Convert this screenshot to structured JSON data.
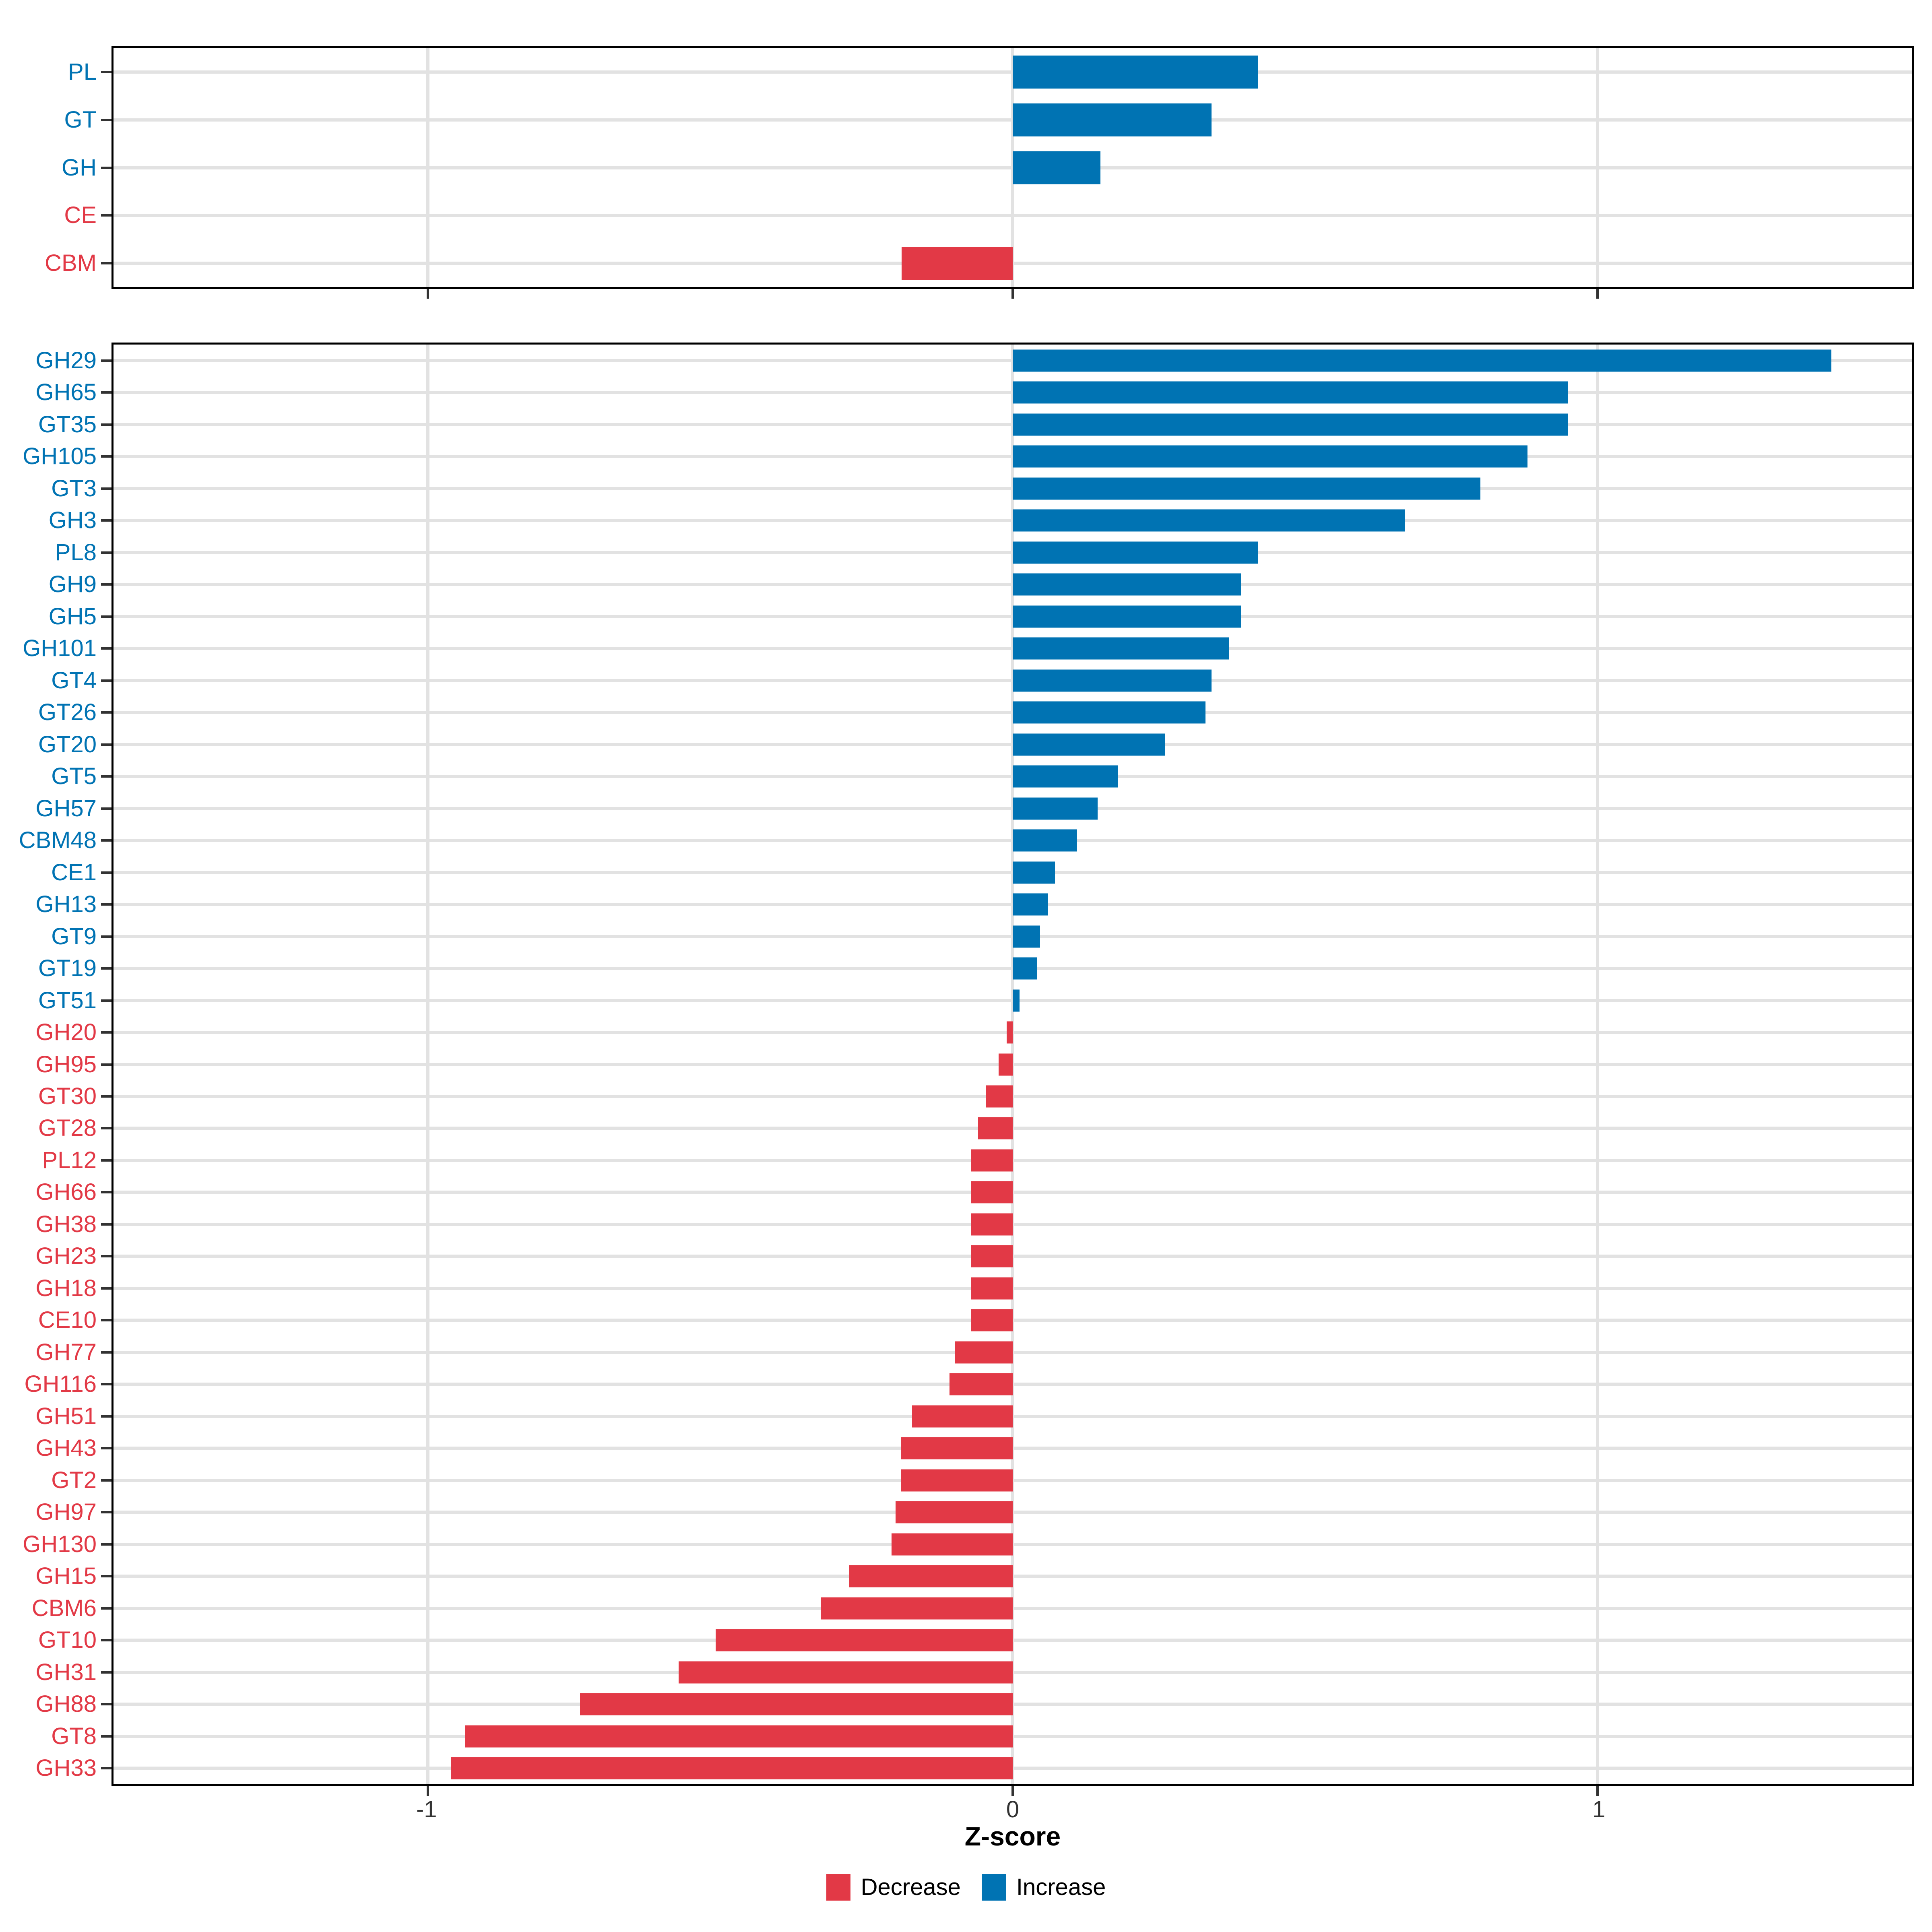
{
  "colors": {
    "increase": "#0073B3",
    "decrease": "#E23946",
    "gridline": "#e2e2e2",
    "axis": "#000000"
  },
  "chart_data": {
    "type": "bar",
    "orientation": "horizontal",
    "xlabel": "Z-score",
    "xlim": [
      -1.5375,
      1.5375
    ],
    "x_tick_values": [
      -1,
      0,
      1
    ],
    "x_ticks": [
      "-1",
      "0",
      "1"
    ],
    "grid": "major-only",
    "legend_position": "bottom",
    "legend": [
      {
        "label": "Decrease",
        "direction": "decrease",
        "color": "#E23946"
      },
      {
        "label": "Increase",
        "direction": "increase",
        "color": "#0073B3"
      }
    ],
    "panels": [
      {
        "name": "cazyme-classes",
        "categories": [
          "PL",
          "GT",
          "GH",
          "CE",
          "CBM"
        ],
        "values": [
          0.42,
          0.34,
          0.15,
          0.0,
          -0.19
        ],
        "directions": [
          "increase",
          "increase",
          "increase",
          "decrease",
          "decrease"
        ]
      },
      {
        "name": "cazyme-families",
        "categories": [
          "GH29",
          "GH65",
          "GT35",
          "GH105",
          "GT3",
          "GH3",
          "PL8",
          "GH9",
          "GH5",
          "GH101",
          "GT4",
          "GT26",
          "GT20",
          "GT5",
          "GH57",
          "CBM48",
          "CE1",
          "GH13",
          "GT9",
          "GT19",
          "GT51",
          "GH20",
          "GH95",
          "GT30",
          "GT28",
          "PL12",
          "GH66",
          "GH38",
          "GH23",
          "GH18",
          "CE10",
          "GH77",
          "GH116",
          "GH51",
          "GH43",
          "GT2",
          "GH97",
          "GH130",
          "GH15",
          "CBM6",
          "GT10",
          "GH31",
          "GH88",
          "GT8",
          "GH33"
        ],
        "values": [
          1.4,
          0.95,
          0.95,
          0.88,
          0.8,
          0.67,
          0.42,
          0.39,
          0.39,
          0.37,
          0.34,
          0.33,
          0.26,
          0.18,
          0.145,
          0.11,
          0.072,
          0.06,
          0.047,
          0.041,
          0.012,
          -0.01,
          -0.024,
          -0.046,
          -0.059,
          -0.071,
          -0.071,
          -0.071,
          -0.071,
          -0.071,
          -0.071,
          -0.099,
          -0.108,
          -0.172,
          -0.191,
          -0.191,
          -0.2,
          -0.207,
          -0.28,
          -0.328,
          -0.508,
          -0.571,
          -0.74,
          -0.936,
          -0.961
        ],
        "directions": [
          "increase",
          "increase",
          "increase",
          "increase",
          "increase",
          "increase",
          "increase",
          "increase",
          "increase",
          "increase",
          "increase",
          "increase",
          "increase",
          "increase",
          "increase",
          "increase",
          "increase",
          "increase",
          "increase",
          "increase",
          "increase",
          "decrease",
          "decrease",
          "decrease",
          "decrease",
          "decrease",
          "decrease",
          "decrease",
          "decrease",
          "decrease",
          "decrease",
          "decrease",
          "decrease",
          "decrease",
          "decrease",
          "decrease",
          "decrease",
          "decrease",
          "decrease",
          "decrease",
          "decrease",
          "decrease",
          "decrease",
          "decrease",
          "decrease"
        ]
      }
    ]
  }
}
